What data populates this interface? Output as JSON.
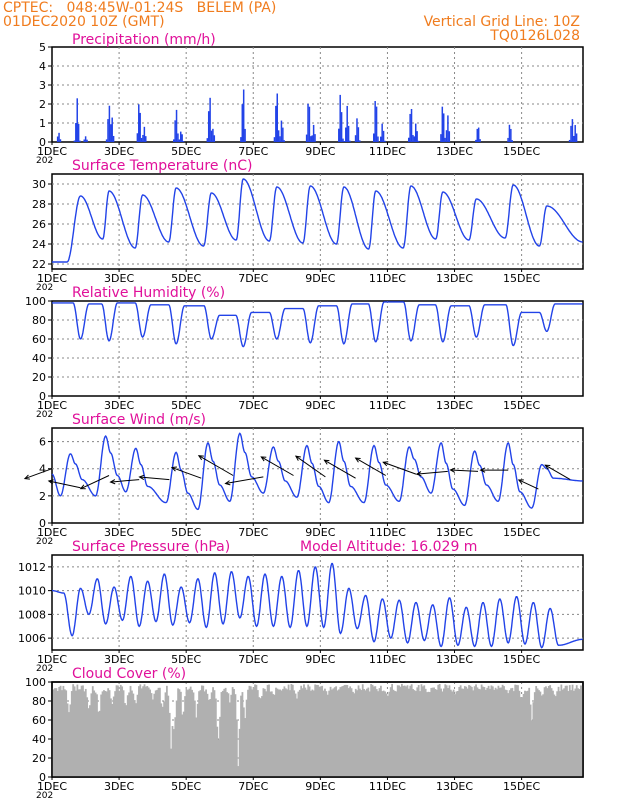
{
  "header": {
    "line1": "CPTEC:   048:45W-01:24S   BELEM (PA)",
    "line2": "01DEC2020 10Z (GMT)",
    "grid_line": "Vertical Grid Line: 10Z",
    "run_code": "TQ0126L028",
    "model_altitude": "Model Altitude: 16.029 m",
    "year_stub": "202"
  },
  "colors": {
    "header": "#f07c1e",
    "title": "#e0109a",
    "series": "#2243e8",
    "cloud": "#b0b0b0",
    "wind_arrow": "#000000",
    "grid": "#888888"
  },
  "chart_data": [
    {
      "id": "precip",
      "type": "bar",
      "title": "Precipitation (mm/h)",
      "ylim": [
        0,
        5
      ],
      "yticks": [
        0,
        1,
        2,
        3,
        4,
        5
      ],
      "x_days": [
        1,
        16.83
      ],
      "xticks": [
        "1DEC",
        "3DEC",
        "5DEC",
        "7DEC",
        "9DEC",
        "11DEC",
        "13DEC",
        "15DEC"
      ],
      "hourly_step_days": 0.0417,
      "bursts": [
        {
          "t": 1.2,
          "peak": 0.5
        },
        {
          "t": 1.75,
          "peak": 2.3
        },
        {
          "t": 2.0,
          "peak": 0.3
        },
        {
          "t": 2.7,
          "peak": 2.0
        },
        {
          "t": 2.78,
          "peak": 1.4
        },
        {
          "t": 3.6,
          "peak": 2.2
        },
        {
          "t": 3.75,
          "peak": 0.8
        },
        {
          "t": 4.7,
          "peak": 1.8
        },
        {
          "t": 4.85,
          "peak": 0.6
        },
        {
          "t": 5.7,
          "peak": 2.5
        },
        {
          "t": 5.8,
          "peak": 0.7
        },
        {
          "t": 6.7,
          "peak": 3.0
        },
        {
          "t": 7.7,
          "peak": 2.8
        },
        {
          "t": 7.85,
          "peak": 1.2
        },
        {
          "t": 8.65,
          "peak": 2.4
        },
        {
          "t": 8.8,
          "peak": 0.9
        },
        {
          "t": 9.6,
          "peak": 2.6
        },
        {
          "t": 9.8,
          "peak": 1.9
        },
        {
          "t": 10.1,
          "peak": 1.3
        },
        {
          "t": 10.65,
          "peak": 2.5
        },
        {
          "t": 10.85,
          "peak": 1.0
        },
        {
          "t": 11.7,
          "peak": 2.0
        },
        {
          "t": 11.85,
          "peak": 1.0
        },
        {
          "t": 12.65,
          "peak": 2.1
        },
        {
          "t": 12.8,
          "peak": 1.4
        },
        {
          "t": 13.7,
          "peak": 0.9
        },
        {
          "t": 14.65,
          "peak": 1.0
        },
        {
          "t": 16.5,
          "peak": 1.3
        },
        {
          "t": 16.6,
          "peak": 0.9
        }
      ]
    },
    {
      "id": "temp",
      "type": "line",
      "title": "Surface Temperature (nC)",
      "ylim": [
        21.5,
        31
      ],
      "yticks": [
        22,
        24,
        26,
        28,
        30
      ],
      "x_days": [
        1,
        16.83
      ],
      "xticks": [
        "1DEC",
        "3DEC",
        "5DEC",
        "7DEC",
        "9DEC",
        "11DEC",
        "13DEC",
        "15DEC"
      ],
      "days": [
        1,
        1.5,
        2,
        2.5,
        3,
        3.5,
        4,
        4.5,
        5,
        5.5,
        6,
        6.5,
        7,
        7.5,
        8,
        8.5,
        9,
        9.5,
        10,
        10.5,
        11,
        11.5,
        12,
        12.5,
        13,
        13.5,
        14,
        14.5,
        15,
        15.5,
        16,
        16.5,
        16.83
      ],
      "values": [
        22.2,
        22.4,
        28.8,
        24.5,
        29.3,
        23.6,
        28.9,
        24.2,
        29.6,
        23.8,
        29.1,
        24.4,
        30.5,
        24.3,
        29.7,
        24.1,
        29.8,
        24.0,
        29.7,
        23.5,
        29.3,
        23.6,
        29.8,
        24.5,
        29.2,
        24.4,
        28.5,
        24.6,
        29.9,
        23.8,
        27.8,
        24.2,
        24.8
      ],
      "peak_days": [
        1.85,
        2.7,
        3.7,
        4.7,
        5.75,
        6.7,
        7.7,
        8.7,
        9.7,
        10.65,
        11.7,
        12.65,
        13.65,
        14.75,
        15.75
      ],
      "peaks": [
        28.8,
        29.3,
        28.9,
        29.6,
        29.1,
        30.5,
        29.7,
        29.8,
        29.7,
        29.3,
        29.8,
        29.2,
        28.5,
        29.9,
        27.8
      ],
      "mins": [
        22.2,
        24.5,
        23.6,
        24.2,
        23.8,
        24.4,
        24.3,
        24.1,
        24.0,
        23.5,
        23.6,
        24.5,
        24.4,
        24.6,
        23.8,
        24.2
      ]
    },
    {
      "id": "rh",
      "type": "line",
      "title": "Relative Humidity (%)",
      "ylim": [
        0,
        100
      ],
      "yticks": [
        0,
        20,
        40,
        60,
        80,
        100
      ],
      "x_days": [
        1,
        16.83
      ],
      "xticks": [
        "1DEC",
        "3DEC",
        "5DEC",
        "7DEC",
        "9DEC",
        "11DEC",
        "13DEC",
        "15DEC"
      ],
      "min_days": [
        1.85,
        2.7,
        3.7,
        4.7,
        5.75,
        6.7,
        7.7,
        8.7,
        9.7,
        10.65,
        11.7,
        12.65,
        13.65,
        14.75,
        15.75
      ],
      "mins": [
        60,
        58,
        62,
        55,
        60,
        52,
        60,
        56,
        55,
        57,
        58,
        57,
        62,
        53,
        68
      ],
      "plateaus": [
        98,
        97,
        98,
        96,
        95,
        85,
        88,
        92,
        95,
        97,
        99,
        96,
        95,
        96,
        88,
        97
      ]
    },
    {
      "id": "wind",
      "type": "line",
      "title": "Surface Wind (m/s)",
      "ylim": [
        0,
        7
      ],
      "yticks": [
        0,
        2,
        4,
        6
      ],
      "x_days": [
        1,
        16.83
      ],
      "xticks": [
        "1DEC",
        "3DEC",
        "5DEC",
        "7DEC",
        "9DEC",
        "11DEC",
        "13DEC",
        "15DEC"
      ],
      "peak_days": [
        1.55,
        2.6,
        3.5,
        4.7,
        5.65,
        6.6,
        7.6,
        8.6,
        9.55,
        10.6,
        11.65,
        12.6,
        13.6,
        14.6,
        15.6
      ],
      "peaks": [
        5.1,
        6.4,
        5.5,
        5.2,
        5.9,
        6.6,
        5.6,
        5.7,
        6.0,
        5.7,
        5.6,
        5.9,
        5.3,
        5.9,
        4.3
      ],
      "mins": [
        2.0,
        2.0,
        2.3,
        1.5,
        1.0,
        1.6,
        2.2,
        1.9,
        1.5,
        1.5,
        1.6,
        2.2,
        1.3,
        1.6,
        1.1,
        2.1
      ],
      "arrows": {
        "days": [
          1.0,
          1.85,
          2.7,
          3.6,
          4.5,
          5.45,
          6.4,
          7.3,
          8.2,
          9.15,
          10.05,
          10.95,
          11.85,
          12.8,
          13.7,
          14.6,
          15.5,
          16.45
        ],
        "speed": [
          2.4,
          2.7,
          2.6,
          2.4,
          2.5,
          2.6,
          3.3,
          3.2,
          3.1,
          3.0,
          3.0,
          2.9,
          2.9,
          2.6,
          2.3,
          2.3,
          1.8,
          2.4
        ],
        "ang_deg": [
          20,
          -12,
          25,
          5,
          -5,
          -20,
          -30,
          10,
          -30,
          -35,
          -30,
          -30,
          -20,
          5,
          -3,
          0,
          -25,
          -30
        ],
        "y": [
          4.0,
          2.6,
          3.5,
          3.2,
          3.2,
          3.3,
          3.5,
          3.4,
          3.5,
          3.4,
          3.3,
          3.5,
          3.6,
          3.8,
          3.8,
          3.9,
          2.5,
          3.2
        ]
      }
    },
    {
      "id": "pres",
      "type": "line",
      "title": "Surface Pressure (hPa)",
      "ylim": [
        1005,
        1013
      ],
      "yticks": [
        1006,
        1008,
        1010,
        1012
      ],
      "x_days": [
        1,
        16.83
      ],
      "xticks": [
        "1DEC",
        "3DEC",
        "5DEC",
        "7DEC",
        "9DEC",
        "11DEC",
        "13DEC",
        "15DEC"
      ],
      "start": 1010.0,
      "cycles": [
        {
          "hi": 1009.8,
          "lo": 1006.2,
          "hi2": 1010.2,
          "lo2": 1008.0
        },
        {
          "hi": 1011.0,
          "lo": 1007.2,
          "hi2": 1010.3,
          "lo2": 1007.5
        },
        {
          "hi": 1011.2,
          "lo": 1007.0,
          "hi2": 1010.8,
          "lo2": 1007.4
        },
        {
          "hi": 1011.4,
          "lo": 1007.1,
          "hi2": 1010.3,
          "lo2": 1007.3
        },
        {
          "hi": 1011.0,
          "lo": 1006.9,
          "hi2": 1011.5,
          "lo2": 1007.2
        },
        {
          "hi": 1011.6,
          "lo": 1007.7,
          "hi2": 1011.2,
          "lo2": 1007.0
        },
        {
          "hi": 1011.4,
          "lo": 1007.0,
          "hi2": 1011.2,
          "lo2": 1006.9
        },
        {
          "hi": 1011.7,
          "lo": 1007.0,
          "hi2": 1012.0,
          "lo2": 1006.9
        },
        {
          "hi": 1012.3,
          "lo": 1006.4,
          "hi2": 1010.2,
          "lo2": 1006.8
        },
        {
          "hi": 1009.6,
          "lo": 1005.7,
          "hi2": 1009.3,
          "lo2": 1006.0
        },
        {
          "hi": 1009.2,
          "lo": 1005.6,
          "hi2": 1009.0,
          "lo2": 1005.8
        },
        {
          "hi": 1008.8,
          "lo": 1005.3,
          "hi2": 1009.4,
          "lo2": 1005.4
        },
        {
          "hi": 1008.6,
          "lo": 1005.3,
          "hi2": 1009.0,
          "lo2": 1005.3
        },
        {
          "hi": 1009.3,
          "lo": 1005.6,
          "hi2": 1009.5,
          "lo2": 1005.5
        },
        {
          "hi": 1009.0,
          "lo": 1005.2,
          "hi2": 1008.5,
          "lo2": 1005.4
        }
      ]
    },
    {
      "id": "cloud",
      "type": "area",
      "title": "Cloud Cover (%)",
      "ylim": [
        0,
        100
      ],
      "yticks": [
        0,
        20,
        40,
        60,
        80,
        100
      ],
      "x_days": [
        1,
        16.83
      ],
      "xticks": [
        "1DEC",
        "3DEC",
        "5DEC",
        "7DEC",
        "9DEC",
        "11DEC",
        "13DEC",
        "15DEC"
      ],
      "base_level": 92,
      "dips": [
        {
          "t": 1.5,
          "v": 60
        },
        {
          "t": 2.1,
          "v": 70
        },
        {
          "t": 2.4,
          "v": 55
        },
        {
          "t": 2.8,
          "v": 75
        },
        {
          "t": 3.2,
          "v": 68
        },
        {
          "t": 3.5,
          "v": 72
        },
        {
          "t": 4.0,
          "v": 78
        },
        {
          "t": 4.3,
          "v": 65
        },
        {
          "t": 4.55,
          "v": 15
        },
        {
          "t": 4.65,
          "v": 35
        },
        {
          "t": 4.9,
          "v": 62
        },
        {
          "t": 5.3,
          "v": 58
        },
        {
          "t": 5.7,
          "v": 72
        },
        {
          "t": 5.95,
          "v": 20
        },
        {
          "t": 6.3,
          "v": 75
        },
        {
          "t": 6.55,
          "v": 2
        },
        {
          "t": 6.75,
          "v": 55
        },
        {
          "t": 7.2,
          "v": 75
        },
        {
          "t": 7.6,
          "v": 85
        },
        {
          "t": 8.3,
          "v": 82
        },
        {
          "t": 9.2,
          "v": 85
        },
        {
          "t": 10.0,
          "v": 88
        },
        {
          "t": 11.0,
          "v": 85
        },
        {
          "t": 12.2,
          "v": 88
        },
        {
          "t": 13.0,
          "v": 86
        },
        {
          "t": 14.6,
          "v": 88
        },
        {
          "t": 15.0,
          "v": 78
        },
        {
          "t": 15.3,
          "v": 58
        },
        {
          "t": 15.6,
          "v": 85
        },
        {
          "t": 16.0,
          "v": 82
        }
      ]
    }
  ]
}
